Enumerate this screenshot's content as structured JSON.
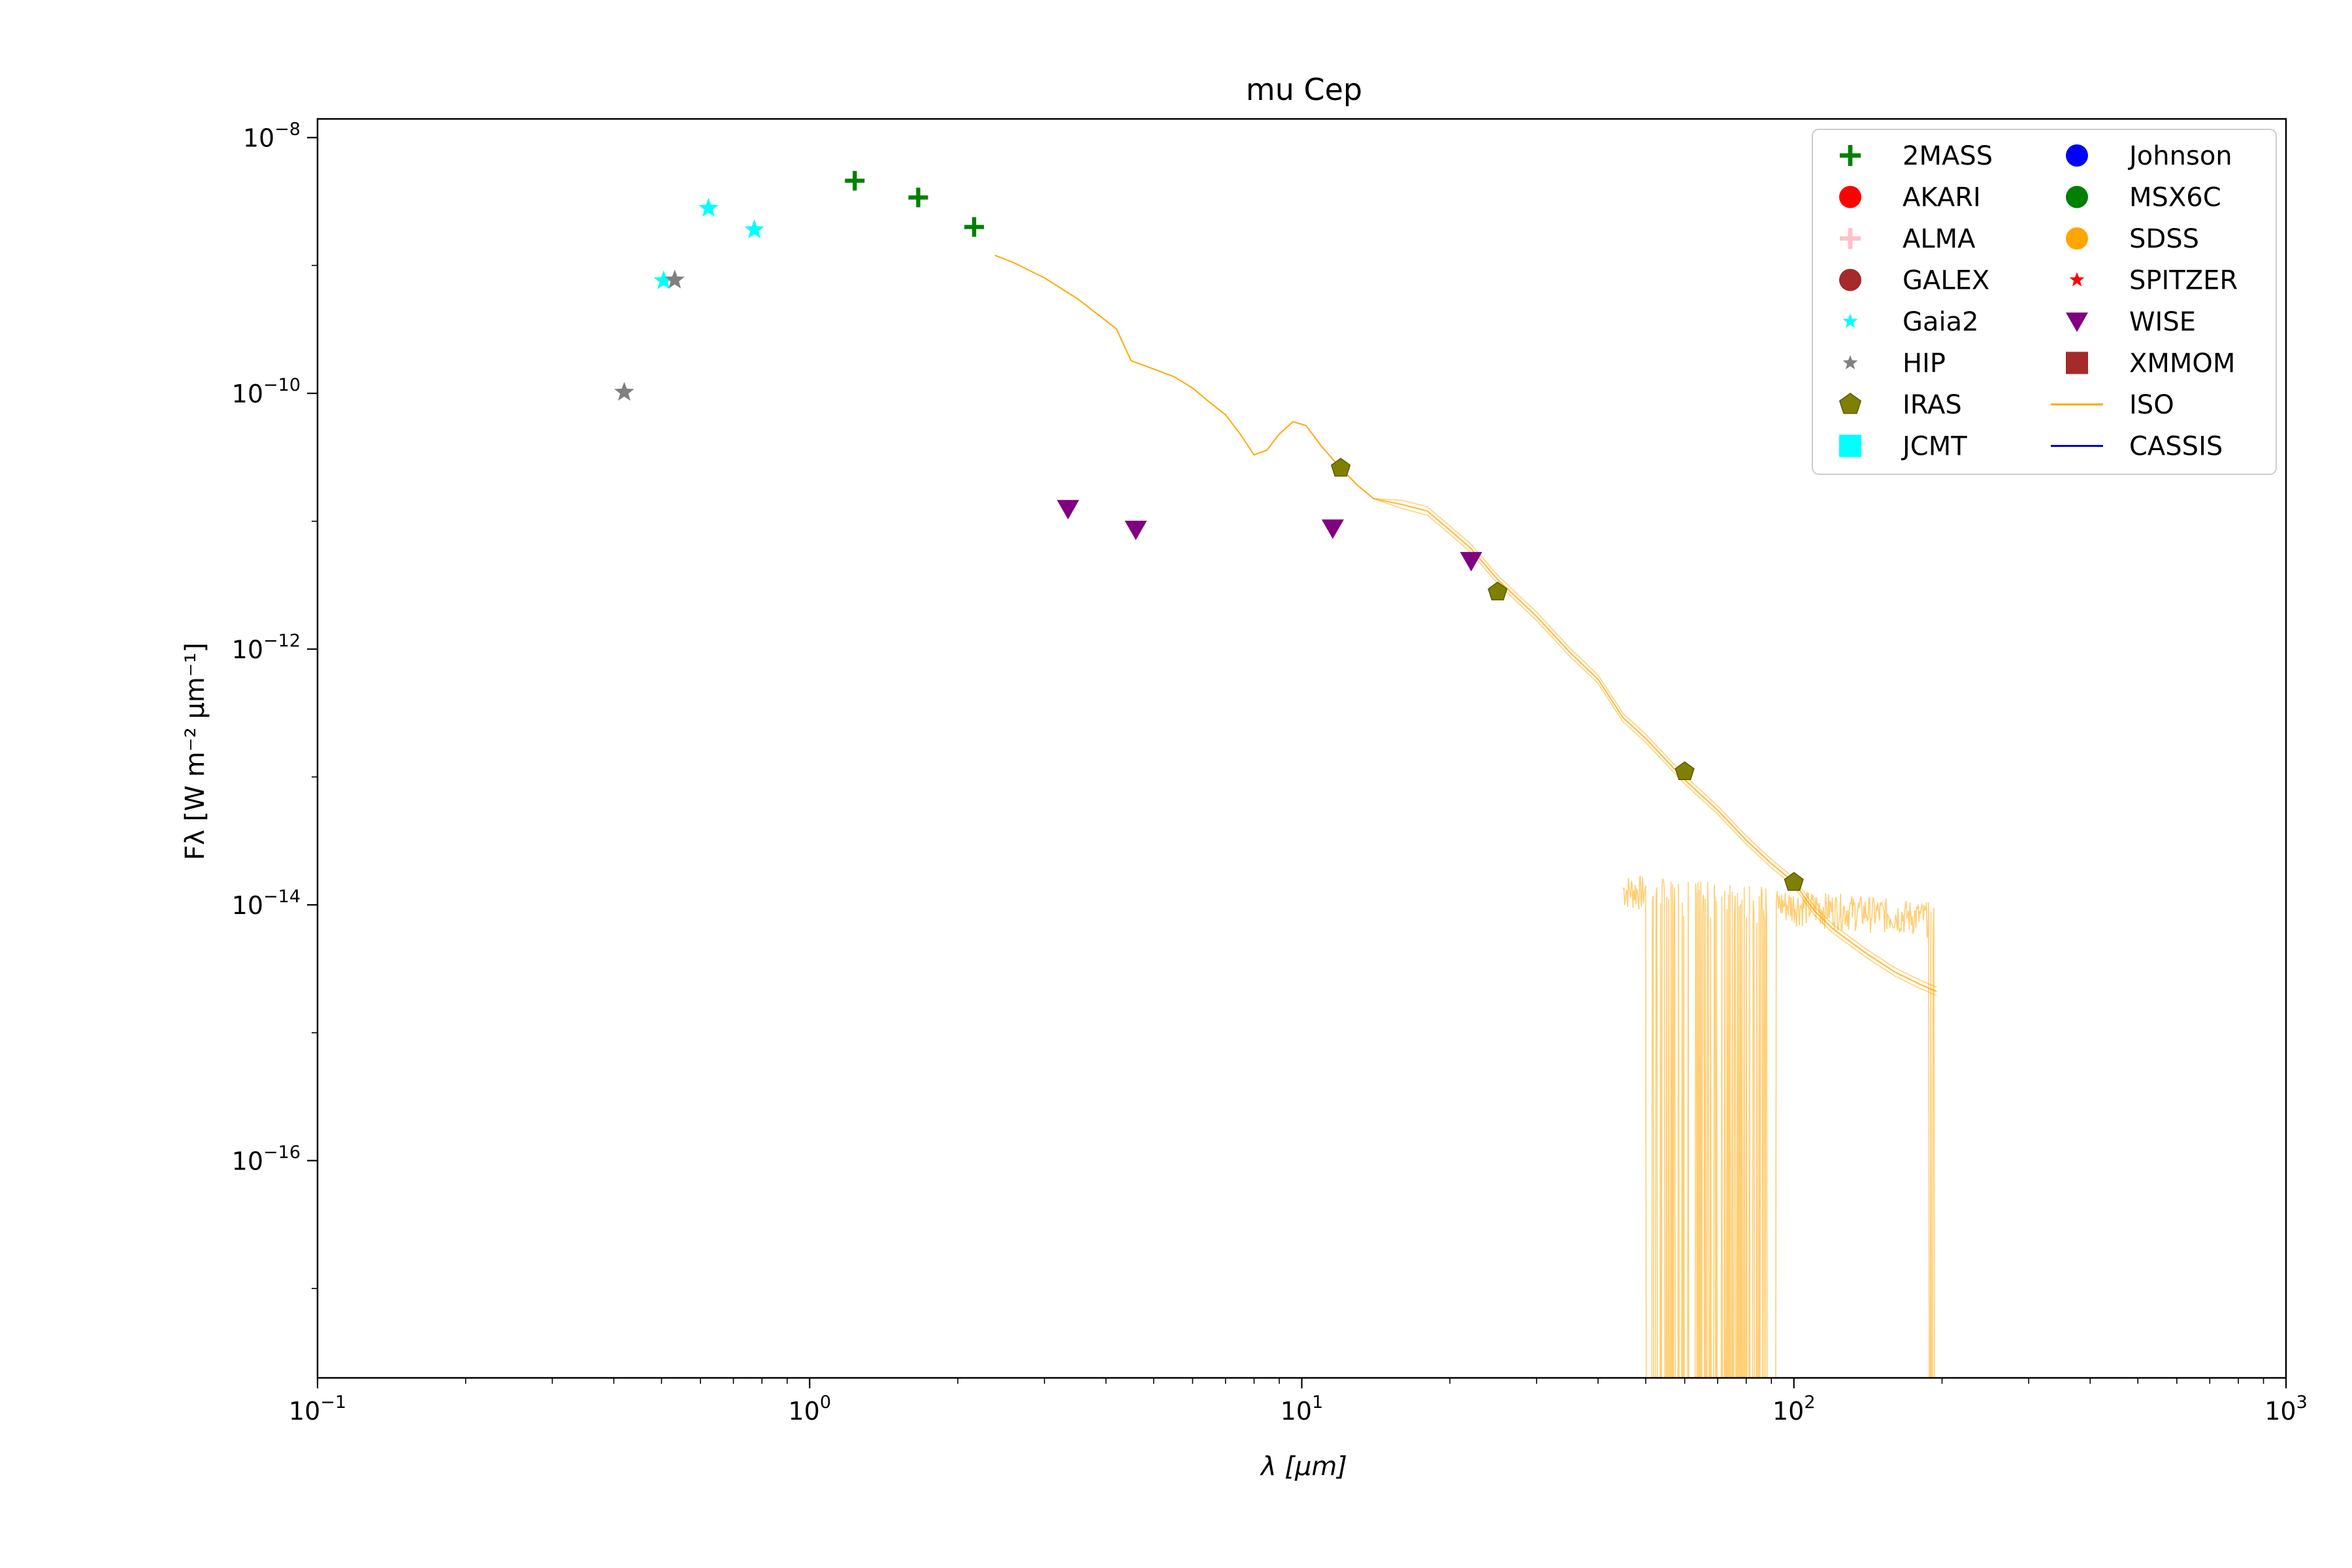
{
  "chart_data": {
    "type": "scatter",
    "title": "mu Cep",
    "xlabel": "λ [μm]",
    "ylabel": "Fλ [W m⁻² μm⁻¹]",
    "xscale": "log",
    "yscale": "log",
    "xlim": [
      0.1,
      1000
    ],
    "ylim": [
      2e-18,
      1.4e-08
    ],
    "grid": false,
    "legend_position": "top-right",
    "x_ticks": [
      {
        "value": 0.1,
        "base": "10",
        "exp": "−1"
      },
      {
        "value": 1,
        "base": "10",
        "exp": "0"
      },
      {
        "value": 10,
        "base": "10",
        "exp": "1"
      },
      {
        "value": 100,
        "base": "10",
        "exp": "2"
      },
      {
        "value": 1000,
        "base": "10",
        "exp": "3"
      }
    ],
    "y_ticks": [
      {
        "value": 1e-16,
        "base": "10",
        "exp": "−16"
      },
      {
        "value": 1e-14,
        "base": "10",
        "exp": "−14"
      },
      {
        "value": 1e-12,
        "base": "10",
        "exp": "−12"
      },
      {
        "value": 1e-10,
        "base": "10",
        "exp": "−10"
      },
      {
        "value": 1e-08,
        "base": "10",
        "exp": "−8"
      }
    ],
    "series": [
      {
        "name": "2MASS",
        "marker": "plus",
        "color": "#008000",
        "points": [
          [
            1.235,
            4.6e-09
          ],
          [
            1.662,
            3.4e-09
          ],
          [
            2.159,
            2e-09
          ]
        ]
      },
      {
        "name": "AKARI",
        "marker": "circle",
        "color": "#ff0000",
        "points": []
      },
      {
        "name": "ALMA",
        "marker": "plus",
        "color": "#ffc0cb",
        "points": []
      },
      {
        "name": "GALEX",
        "marker": "circle",
        "color": "#a52a2a",
        "points": []
      },
      {
        "name": "Gaia2",
        "marker": "star",
        "color": "#00ffff",
        "points": [
          [
            0.505,
            7.6e-10
          ],
          [
            0.623,
            2.8e-09
          ],
          [
            0.772,
            1.9e-09
          ]
        ]
      },
      {
        "name": "HIP",
        "marker": "star",
        "color": "#808080",
        "points": [
          [
            0.42,
            1.02e-10
          ],
          [
            0.532,
            7.7e-10
          ]
        ]
      },
      {
        "name": "IRAS",
        "marker": "pentagon",
        "color": "#808000",
        "points": [
          [
            12,
            2.6e-11
          ],
          [
            25,
            2.8e-12
          ],
          [
            60,
            1.1e-13
          ],
          [
            100,
            1.5e-14
          ]
        ]
      },
      {
        "name": "JCMT",
        "marker": "square",
        "color": "#00ffff",
        "points": []
      },
      {
        "name": "Johnson",
        "marker": "circle",
        "color": "#0000ff",
        "points": []
      },
      {
        "name": "MSX6C",
        "marker": "circle",
        "color": "#008000",
        "points": []
      },
      {
        "name": "SDSS",
        "marker": "circle",
        "color": "#ffa500",
        "points": []
      },
      {
        "name": "SPITZER",
        "marker": "star",
        "color": "#ff0000",
        "points": []
      },
      {
        "name": "WISE",
        "marker": "triangle-down",
        "color": "#800080",
        "points": [
          [
            3.35,
            1.25e-11
          ],
          [
            4.6,
            8.6e-12
          ],
          [
            11.56,
            8.8e-12
          ],
          [
            22.09,
            4.9e-12
          ]
        ]
      },
      {
        "name": "XMMOM",
        "marker": "square",
        "color": "#a52a2a",
        "points": []
      }
    ],
    "lines": [
      {
        "name": "ISO",
        "color": "#ffa500",
        "points": [
          [
            2.38,
            1.2e-09
          ],
          [
            2.6,
            1.05e-09
          ],
          [
            3.0,
            8e-10
          ],
          [
            3.5,
            5.5e-10
          ],
          [
            4.0,
            3.7e-10
          ],
          [
            4.2,
            3.2e-10
          ],
          [
            4.5,
            1.8e-10
          ],
          [
            5.0,
            1.55e-10
          ],
          [
            5.5,
            1.35e-10
          ],
          [
            6.0,
            1.1e-10
          ],
          [
            6.5,
            8.5e-11
          ],
          [
            7.0,
            6.8e-11
          ],
          [
            7.5,
            4.8e-11
          ],
          [
            8.0,
            3.3e-11
          ],
          [
            8.5,
            3.6e-11
          ],
          [
            9.0,
            4.8e-11
          ],
          [
            9.6,
            6e-11
          ],
          [
            10.2,
            5.6e-11
          ],
          [
            11.0,
            3.8e-11
          ],
          [
            12.0,
            2.6e-11
          ],
          [
            13.0,
            1.9e-11
          ],
          [
            14.0,
            1.5e-11
          ],
          [
            16.0,
            1.35e-11
          ],
          [
            18.0,
            1.2e-11
          ],
          [
            20.0,
            8.5e-12
          ],
          [
            22.0,
            6.2e-12
          ],
          [
            25.0,
            3.5e-12
          ],
          [
            30.0,
            1.8e-12
          ],
          [
            35.0,
            9.5e-13
          ],
          [
            40.0,
            5.8e-13
          ],
          [
            45.0,
            2.9e-13
          ],
          [
            50.0,
            2e-13
          ],
          [
            60.0,
            9.5e-14
          ],
          [
            70.0,
            5.5e-14
          ],
          [
            80.0,
            3.2e-14
          ],
          [
            90.0,
            2.1e-14
          ],
          [
            100.0,
            1.5e-14
          ],
          [
            110.0,
            9e-15
          ],
          [
            120.0,
            6.5e-15
          ],
          [
            140.0,
            4.2e-15
          ],
          [
            160.0,
            3e-15
          ],
          [
            180.0,
            2.4e-15
          ],
          [
            195.0,
            2.1e-15
          ]
        ]
      },
      {
        "name": "CASSIS",
        "color": "#0000cc",
        "points": []
      }
    ]
  }
}
